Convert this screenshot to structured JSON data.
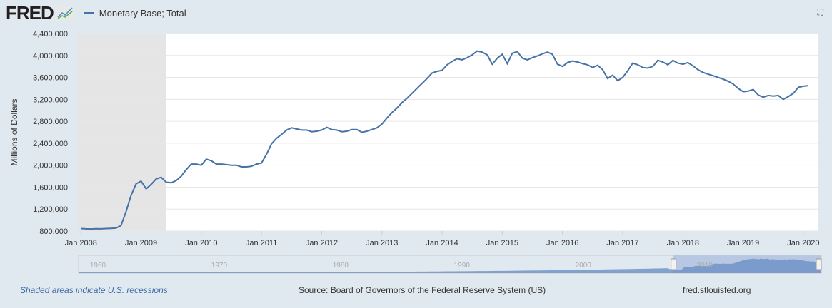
{
  "header": {
    "logo": "FRED",
    "legend": "Monetary Base; Total",
    "fullscreen_icon": "expand-icon"
  },
  "annotation": "!!?",
  "footer": {
    "note": "Shaded areas indicate U.S. recessions",
    "source": "Source: Board of Governors of the Federal Reserve System (US)",
    "url": "fred.stlouisfed.org"
  },
  "navigator": {
    "labels": [
      "1960",
      "1970",
      "1980",
      "1990",
      "2000",
      "2010"
    ]
  },
  "chart_data": {
    "type": "line",
    "title": "",
    "xlabel": "",
    "ylabel": "Millions of Dollars",
    "ylim": [
      800000,
      4400000
    ],
    "yticks": [
      "800,000",
      "1,200,000",
      "1,600,000",
      "2,000,000",
      "2,400,000",
      "2,800,000",
      "3,200,000",
      "3,600,000",
      "4,000,000",
      "4,400,000"
    ],
    "xticks": [
      "Jan 2008",
      "Jan 2009",
      "Jan 2010",
      "Jan 2011",
      "Jan 2012",
      "Jan 2013",
      "Jan 2014",
      "Jan 2015",
      "Jan 2016",
      "Jan 2017",
      "Jan 2018",
      "Jan 2019",
      "Jan 2020"
    ],
    "recession": [
      "Dec 2007",
      "Jun 2009"
    ],
    "start": "Jan 2008",
    "frequency": "monthly",
    "unit": "thousands of millions shown as millions",
    "series": [
      {
        "name": "Monetary Base; Total",
        "color": "#4572a7",
        "values": [
          845,
          840,
          838,
          842,
          840,
          845,
          850,
          855,
          900,
          1150,
          1450,
          1660,
          1710,
          1570,
          1650,
          1750,
          1780,
          1690,
          1680,
          1720,
          1800,
          1920,
          2020,
          2020,
          2000,
          2110,
          2080,
          2020,
          2020,
          2010,
          2000,
          2000,
          1970,
          1970,
          1980,
          2020,
          2040,
          2200,
          2390,
          2490,
          2560,
          2640,
          2680,
          2660,
          2640,
          2640,
          2610,
          2620,
          2640,
          2690,
          2650,
          2640,
          2610,
          2620,
          2650,
          2650,
          2600,
          2620,
          2650,
          2680,
          2750,
          2860,
          2960,
          3040,
          3140,
          3220,
          3310,
          3400,
          3490,
          3580,
          3680,
          3710,
          3730,
          3830,
          3890,
          3940,
          3920,
          3960,
          4010,
          4080,
          4060,
          4010,
          3840,
          3950,
          4020,
          3850,
          4040,
          4070,
          3950,
          3920,
          3960,
          3990,
          4030,
          4060,
          4020,
          3840,
          3800,
          3870,
          3900,
          3880,
          3850,
          3830,
          3780,
          3820,
          3740,
          3580,
          3640,
          3540,
          3600,
          3720,
          3860,
          3830,
          3780,
          3770,
          3800,
          3910,
          3880,
          3830,
          3910,
          3860,
          3840,
          3870,
          3810,
          3740,
          3690,
          3660,
          3630,
          3600,
          3570,
          3530,
          3480,
          3400,
          3340,
          3350,
          3380,
          3280,
          3240,
          3270,
          3260,
          3270,
          3200,
          3250,
          3310,
          3420,
          3440,
          3450
        ]
      }
    ]
  }
}
